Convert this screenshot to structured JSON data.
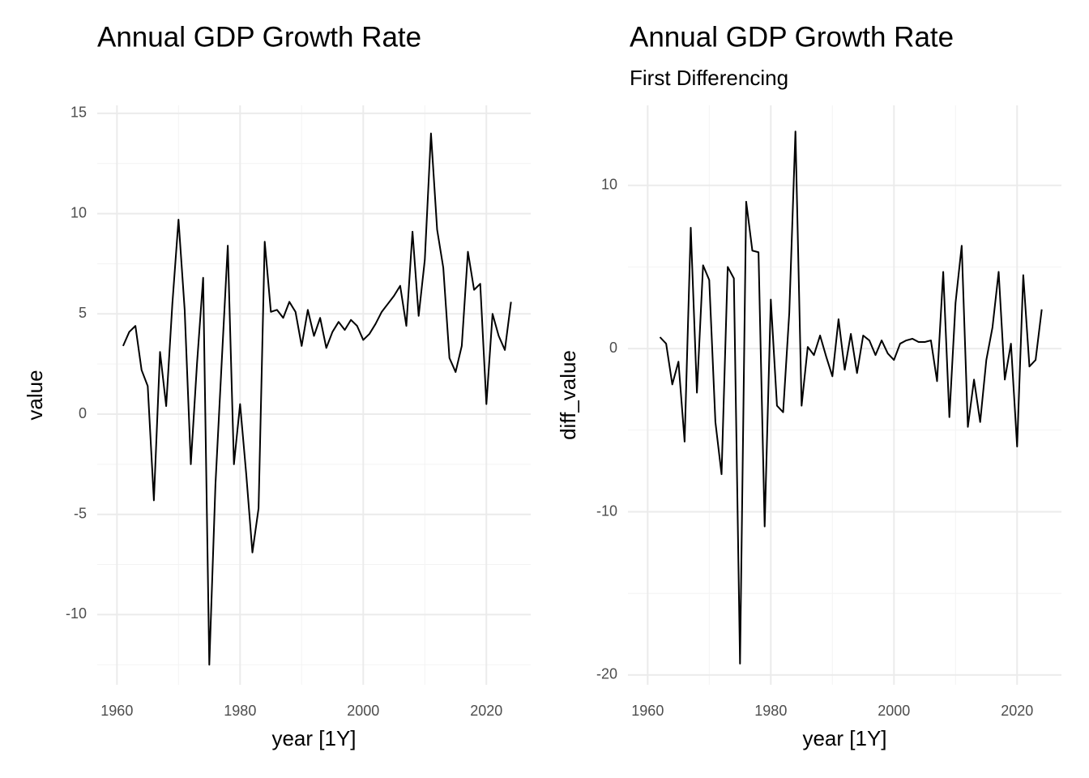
{
  "chart_data": [
    {
      "type": "line",
      "title": "Annual GDP Growth Rate",
      "x_label": "year [1Y]",
      "y_label": "value",
      "x": [
        1961,
        1962,
        1963,
        1964,
        1965,
        1966,
        1967,
        1968,
        1969,
        1970,
        1971,
        1972,
        1973,
        1974,
        1975,
        1976,
        1977,
        1978,
        1979,
        1980,
        1981,
        1982,
        1983,
        1984,
        1985,
        1986,
        1987,
        1988,
        1989,
        1990,
        1991,
        1992,
        1993,
        1994,
        1995,
        1996,
        1997,
        1998,
        1999,
        2000,
        2001,
        2002,
        2003,
        2004,
        2005,
        2006,
        2007,
        2008,
        2009,
        2010,
        2011,
        2012,
        2013,
        2014,
        2015,
        2016,
        2017,
        2018,
        2019,
        2020,
        2021,
        2022,
        2023,
        2024
      ],
      "series": [
        {
          "color": "#000000",
          "values": [
            3.4,
            4.1,
            4.4,
            2.2,
            1.4,
            -4.3,
            3.1,
            0.4,
            5.5,
            9.7,
            5.2,
            -2.5,
            2.5,
            6.8,
            -12.5,
            -3.5,
            2.5,
            8.4,
            -2.5,
            0.5,
            -3.0,
            -6.9,
            -4.7,
            8.6,
            5.1,
            5.2,
            4.8,
            5.6,
            5.1,
            3.4,
            5.2,
            3.9,
            4.8,
            3.3,
            4.1,
            4.6,
            4.2,
            4.7,
            4.4,
            3.7,
            4.0,
            4.5,
            5.1,
            5.5,
            5.9,
            6.4,
            4.4,
            9.1,
            4.9,
            7.7,
            14.0,
            9.2,
            7.3,
            2.8,
            2.1,
            3.4,
            8.1,
            6.2,
            6.5,
            0.5,
            5.0,
            3.9,
            3.2,
            5.6
          ]
        }
      ],
      "xlim": [
        1956.8,
        2027.2
      ],
      "xticks": [
        1960,
        1980,
        2000,
        2020
      ],
      "minor_xticks": [
        1970,
        1990,
        2010
      ],
      "ylim": [
        -13.5,
        15.4
      ],
      "yticks": [
        -10,
        -5,
        0,
        5,
        10,
        15
      ],
      "minor_yticks": [
        -12.5,
        -7.5,
        -2.5,
        2.5,
        7.5,
        12.5
      ],
      "grid": true
    },
    {
      "type": "line",
      "title": "Annual GDP Growth Rate",
      "subtitle": "First Differencing",
      "x_label": "year [1Y]",
      "y_label": "diff_value",
      "x": [
        1962,
        1963,
        1964,
        1965,
        1966,
        1967,
        1968,
        1969,
        1970,
        1971,
        1972,
        1973,
        1974,
        1975,
        1976,
        1977,
        1978,
        1979,
        1980,
        1981,
        1982,
        1983,
        1984,
        1985,
        1986,
        1987,
        1988,
        1989,
        1990,
        1991,
        1992,
        1993,
        1994,
        1995,
        1996,
        1997,
        1998,
        1999,
        2000,
        2001,
        2002,
        2003,
        2004,
        2005,
        2006,
        2007,
        2008,
        2009,
        2010,
        2011,
        2012,
        2013,
        2014,
        2015,
        2016,
        2017,
        2018,
        2019,
        2020,
        2021,
        2022,
        2023,
        2024
      ],
      "series": [
        {
          "color": "#000000",
          "values": [
            0.7,
            0.3,
            -2.2,
            -0.8,
            -5.7,
            7.4,
            -2.7,
            5.1,
            4.2,
            -4.5,
            -7.7,
            5.0,
            4.3,
            -19.3,
            9.0,
            6.0,
            5.9,
            -10.9,
            3.0,
            -3.5,
            -3.9,
            2.2,
            13.3,
            -3.5,
            0.1,
            -0.4,
            0.8,
            -0.5,
            -1.7,
            1.8,
            -1.3,
            0.9,
            -1.5,
            0.8,
            0.5,
            -0.4,
            0.5,
            -0.3,
            -0.7,
            0.3,
            0.5,
            0.6,
            0.4,
            0.4,
            0.5,
            -2.0,
            4.7,
            -4.2,
            2.8,
            6.3,
            -4.8,
            -1.9,
            -4.5,
            -0.7,
            1.3,
            4.7,
            -1.9,
            0.3,
            -6.0,
            4.5,
            -1.1,
            -0.7,
            2.4
          ]
        }
      ],
      "xlim": [
        1956.8,
        2027.2
      ],
      "xticks": [
        1960,
        1980,
        2000,
        2020
      ],
      "minor_xticks": [
        1970,
        1990,
        2010
      ],
      "ylim": [
        -20.6,
        14.9
      ],
      "yticks": [
        -20,
        -10,
        0,
        10
      ],
      "minor_yticks": [
        -15,
        -5,
        5
      ],
      "grid": true
    }
  ]
}
